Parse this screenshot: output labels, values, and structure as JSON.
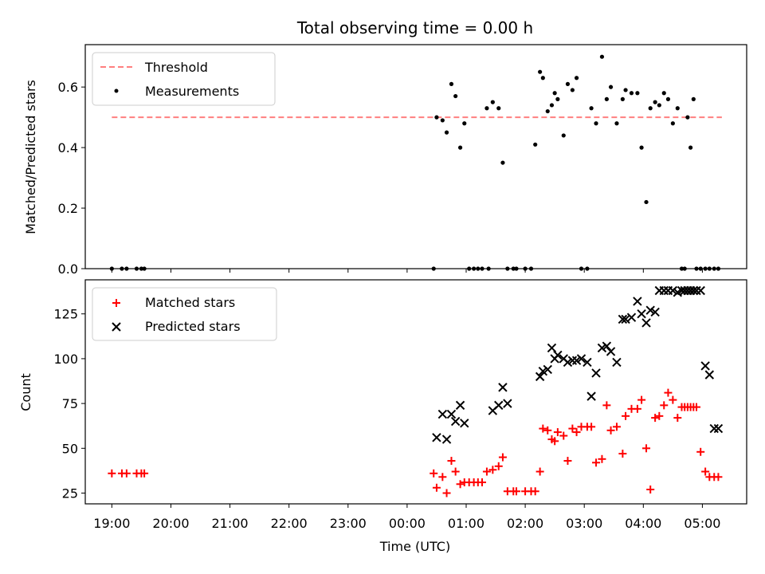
{
  "chart_data": [
    {
      "type": "scatter",
      "title": "Total observing time = 0.00 h",
      "xlabel": "",
      "ylabel": "Matched/Predicted stars",
      "xlim": [
        -0.45,
        10.75
      ],
      "ylim": [
        0,
        0.74
      ],
      "yticks": [
        0.0,
        0.2,
        0.4,
        0.6
      ],
      "ytick_labels": [
        "0.0",
        "0.2",
        "0.4",
        "0.6"
      ],
      "legend": {
        "placement": "upper-left",
        "entries": [
          {
            "label": "Threshold",
            "style": "dashed-line",
            "color": "#ff7f7f"
          },
          {
            "label": "Measurements",
            "style": "dot",
            "color": "#000000"
          }
        ]
      },
      "threshold": {
        "value": 0.5,
        "x_range": [
          0,
          10.33
        ],
        "color": "#ff7f7f"
      },
      "series": [
        {
          "name": "Measurements",
          "color": "#000000",
          "x": [
            0.0,
            0.17,
            0.25,
            0.42,
            0.5,
            0.55,
            5.45,
            5.5,
            5.6,
            5.67,
            5.75,
            5.82,
            5.9,
            5.97,
            6.05,
            6.13,
            6.2,
            6.27,
            6.35,
            6.38,
            6.45,
            6.55,
            6.62,
            6.7,
            6.8,
            6.85,
            7.0,
            7.1,
            7.17,
            7.25,
            7.3,
            7.38,
            7.45,
            7.5,
            7.55,
            7.65,
            7.72,
            7.8,
            7.87,
            7.95,
            8.05,
            8.12,
            8.2,
            8.3,
            8.38,
            8.45,
            8.55,
            8.65,
            8.7,
            8.8,
            8.9,
            8.97,
            9.05,
            9.12,
            9.2,
            9.27,
            9.35,
            9.42,
            9.5,
            9.58,
            9.65,
            9.7,
            9.75,
            9.8,
            9.85,
            9.9,
            9.97,
            10.05,
            10.12,
            10.2,
            10.27
          ],
          "y": [
            0.0,
            0.0,
            0.0,
            0.0,
            0.0,
            0.0,
            0.0,
            0.5,
            0.49,
            0.45,
            0.61,
            0.57,
            0.4,
            0.48,
            0.0,
            0.0,
            0.0,
            0.0,
            0.53,
            0.0,
            0.55,
            0.53,
            0.35,
            0.0,
            0.0,
            0.0,
            0.0,
            0.0,
            0.41,
            0.65,
            0.63,
            0.52,
            0.54,
            0.58,
            0.56,
            0.44,
            0.61,
            0.59,
            0.63,
            0.0,
            0.0,
            0.53,
            0.48,
            0.7,
            0.56,
            0.6,
            0.48,
            0.56,
            0.59,
            0.58,
            0.58,
            0.4,
            0.22,
            0.53,
            0.55,
            0.54,
            0.58,
            0.56,
            0.48,
            0.53,
            0.0,
            0.0,
            0.5,
            0.4,
            0.56,
            0.0,
            0.0,
            0.0,
            0.0,
            0.0,
            0.0
          ]
        }
      ]
    },
    {
      "type": "scatter",
      "title": "",
      "xlabel": "Time (UTC)",
      "ylabel": "Count",
      "xlim": [
        -0.45,
        10.75
      ],
      "ylim": [
        19,
        144
      ],
      "xticks": [
        0,
        1,
        2,
        3,
        4,
        5,
        6,
        7,
        8,
        9,
        10
      ],
      "xtick_labels": [
        "19:00",
        "20:00",
        "21:00",
        "22:00",
        "23:00",
        "00:00",
        "01:00",
        "02:00",
        "03:00",
        "04:00",
        "05:00"
      ],
      "yticks": [
        25,
        50,
        75,
        100,
        125
      ],
      "ytick_labels": [
        "25",
        "50",
        "75",
        "100",
        "125"
      ],
      "legend": {
        "placement": "upper-left",
        "entries": [
          {
            "label": "Matched stars",
            "style": "plus",
            "color": "#ff0000"
          },
          {
            "label": "Predicted stars",
            "style": "x",
            "color": "#000000"
          }
        ]
      },
      "series": [
        {
          "name": "Matched stars",
          "marker": "plus",
          "color": "#ff0000",
          "x": [
            0.0,
            0.17,
            0.25,
            0.42,
            0.5,
            0.55,
            5.45,
            5.5,
            5.6,
            5.67,
            5.75,
            5.82,
            5.9,
            5.97,
            6.05,
            6.13,
            6.2,
            6.27,
            6.35,
            6.45,
            6.55,
            6.62,
            6.7,
            6.8,
            6.85,
            7.0,
            7.1,
            7.17,
            7.25,
            7.3,
            7.38,
            7.45,
            7.5,
            7.55,
            7.65,
            7.72,
            7.8,
            7.87,
            7.95,
            8.05,
            8.12,
            8.2,
            8.3,
            8.38,
            8.45,
            8.55,
            8.65,
            8.7,
            8.8,
            8.9,
            8.97,
            9.05,
            9.12,
            9.2,
            9.27,
            9.35,
            9.42,
            9.5,
            9.58,
            9.65,
            9.7,
            9.75,
            9.8,
            9.85,
            9.9,
            9.97,
            10.05,
            10.12,
            10.2,
            10.27
          ],
          "y": [
            36,
            36,
            36,
            36,
            36,
            36,
            36,
            28,
            34,
            25,
            43,
            37,
            30,
            31,
            31,
            31,
            31,
            31,
            37,
            38,
            40,
            45,
            26,
            26,
            26,
            26,
            26,
            26,
            37,
            61,
            60,
            55,
            54,
            59,
            57,
            43,
            61,
            59,
            62,
            62,
            62,
            42,
            44,
            74,
            60,
            62,
            47,
            68,
            72,
            72,
            77,
            50,
            27,
            67,
            68,
            74,
            81,
            77,
            67,
            73,
            73,
            73,
            73,
            73,
            73,
            48,
            37,
            34,
            34,
            34
          ]
        },
        {
          "name": "Predicted stars",
          "marker": "x",
          "color": "#000000",
          "x": [
            5.5,
            5.6,
            5.67,
            5.75,
            5.82,
            5.9,
            5.97,
            6.45,
            6.55,
            6.62,
            6.7,
            7.25,
            7.3,
            7.38,
            7.45,
            7.5,
            7.55,
            7.65,
            7.72,
            7.8,
            7.87,
            7.95,
            8.05,
            8.12,
            8.2,
            8.3,
            8.38,
            8.45,
            8.55,
            8.65,
            8.7,
            8.8,
            8.9,
            8.97,
            9.05,
            9.12,
            9.2,
            9.27,
            9.35,
            9.42,
            9.5,
            9.58,
            9.65,
            9.7,
            9.75,
            9.8,
            9.85,
            9.9,
            9.97,
            10.05,
            10.12,
            10.2,
            10.27
          ],
          "y": [
            56,
            69,
            55,
            69,
            65,
            74,
            64,
            71,
            74,
            84,
            75,
            90,
            93,
            94,
            106,
            100,
            102,
            100,
            98,
            99,
            99,
            100,
            98,
            79,
            92,
            106,
            107,
            104,
            98,
            122,
            122,
            123,
            132,
            125,
            120,
            127,
            126,
            138,
            138,
            138,
            138,
            137,
            138,
            138,
            138,
            138,
            138,
            138,
            138,
            96,
            91,
            61,
            61
          ]
        }
      ]
    }
  ]
}
